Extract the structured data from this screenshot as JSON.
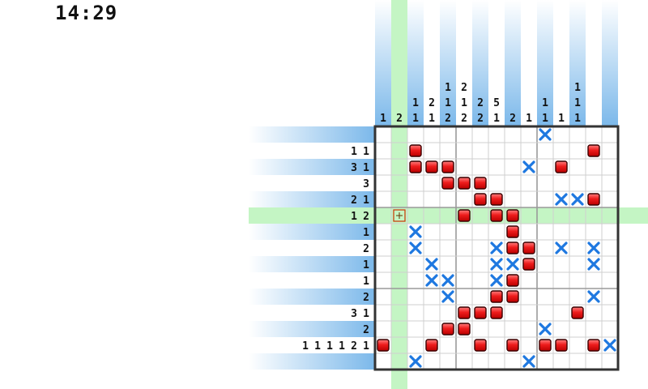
{
  "timer": "14:29",
  "grid": {
    "rows": 15,
    "cols": 15,
    "cursor": {
      "row": 5,
      "col": 1
    }
  },
  "column_clues": [
    [
      "1"
    ],
    [
      "2"
    ],
    [
      "1",
      "1"
    ],
    [
      "2",
      "1"
    ],
    [
      "1",
      "1",
      "2"
    ],
    [
      "2",
      "1",
      "2"
    ],
    [
      "2",
      "2"
    ],
    [
      "5",
      "1"
    ],
    [
      "2"
    ],
    [
      "1"
    ],
    [
      "1",
      "1"
    ],
    [
      "1"
    ],
    [
      "1",
      "1",
      "1"
    ],
    [],
    []
  ],
  "row_clues": [
    [],
    [
      "1",
      "1"
    ],
    [
      "3",
      "1"
    ],
    [
      "3"
    ],
    [
      "2",
      "1"
    ],
    [
      "1",
      "2"
    ],
    [
      "1"
    ],
    [
      "2"
    ],
    [
      "1"
    ],
    [
      "1"
    ],
    [
      "2"
    ],
    [
      "3",
      "1"
    ],
    [
      "2"
    ],
    [
      "1",
      "1",
      "1",
      "1",
      "2",
      "1"
    ],
    []
  ],
  "filled": [
    [
      1,
      2
    ],
    [
      1,
      13
    ],
    [
      2,
      2
    ],
    [
      2,
      3
    ],
    [
      2,
      4
    ],
    [
      2,
      11
    ],
    [
      3,
      4
    ],
    [
      3,
      5
    ],
    [
      3,
      6
    ],
    [
      4,
      6
    ],
    [
      4,
      7
    ],
    [
      4,
      13
    ],
    [
      5,
      5
    ],
    [
      5,
      7
    ],
    [
      5,
      8
    ],
    [
      6,
      8
    ],
    [
      7,
      8
    ],
    [
      7,
      9
    ],
    [
      8,
      9
    ],
    [
      9,
      8
    ],
    [
      10,
      7
    ],
    [
      10,
      8
    ],
    [
      11,
      5
    ],
    [
      11,
      6
    ],
    [
      11,
      7
    ],
    [
      11,
      12
    ],
    [
      12,
      4
    ],
    [
      12,
      5
    ],
    [
      13,
      0
    ],
    [
      13,
      3
    ],
    [
      13,
      6
    ],
    [
      13,
      8
    ],
    [
      13,
      10
    ],
    [
      13,
      11
    ],
    [
      13,
      13
    ]
  ],
  "crossed": [
    [
      0,
      10
    ],
    [
      2,
      9
    ],
    [
      4,
      11
    ],
    [
      4,
      12
    ],
    [
      6,
      2
    ],
    [
      7,
      2
    ],
    [
      7,
      7
    ],
    [
      7,
      11
    ],
    [
      7,
      13
    ],
    [
      8,
      3
    ],
    [
      8,
      7
    ],
    [
      8,
      8
    ],
    [
      8,
      13
    ],
    [
      9,
      3
    ],
    [
      9,
      4
    ],
    [
      9,
      7
    ],
    [
      10,
      4
    ],
    [
      10,
      13
    ],
    [
      12,
      10
    ],
    [
      13,
      14
    ],
    [
      14,
      2
    ],
    [
      14,
      9
    ]
  ],
  "colors": {
    "fill_top": "#ff7070",
    "fill_bottom": "#cc0000",
    "cross": "#1e78e0",
    "highlight": "#c4f5c4",
    "clue_band": "#7bb8ea"
  },
  "icons": {
    "fill": "red-square-icon",
    "cross": "blue-x-icon",
    "cursor": "crosshair-icon"
  }
}
